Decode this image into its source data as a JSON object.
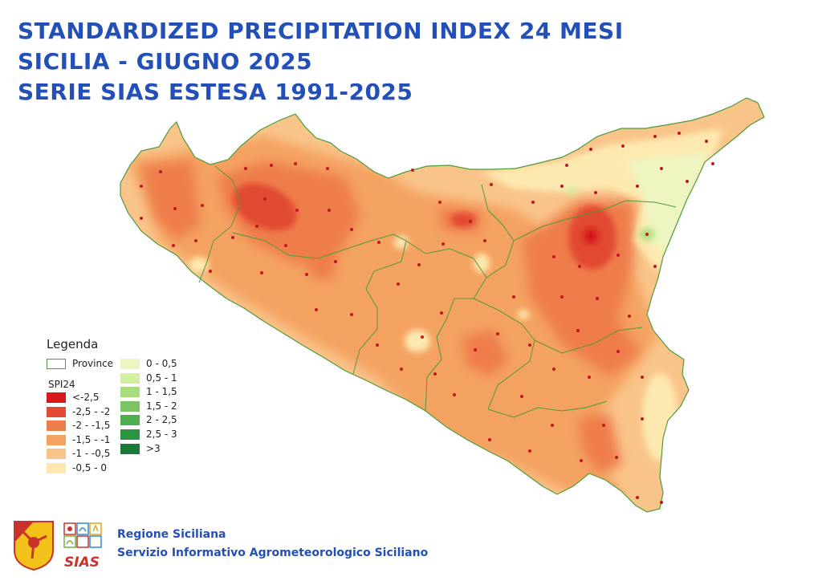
{
  "title": {
    "line1": "STANDARDIZED PRECIPITATION INDEX 24 MESI",
    "line2": "SICILIA - GIUGNO 2025",
    "line3": "SERIE SIAS ESTESA 1991-2025"
  },
  "legend": {
    "title": "Legenda",
    "province_label": "Province",
    "index_label": "SPI24",
    "classes": [
      {
        "label": "<-2,5",
        "color": "#d7191c"
      },
      {
        "label": "-2,5 - -2",
        "color": "#e24a33"
      },
      {
        "label": "-2 - -1,5",
        "color": "#ee7d4c"
      },
      {
        "label": "-1,5 - -1",
        "color": "#f4a261"
      },
      {
        "label": "-1 - -0,5",
        "color": "#f9c48a"
      },
      {
        "label": "-0,5 - 0",
        "color": "#fde9b0"
      },
      {
        "label": "0 - 0,5",
        "color": "#eef5c0"
      },
      {
        "label": "0,5 - 1",
        "color": "#d4eea2"
      },
      {
        "label": "1 - 1,5",
        "color": "#a9dc7e"
      },
      {
        "label": "1,5 - 2",
        "color": "#7cc463"
      },
      {
        "label": "2 - 2,5",
        "color": "#4fae4e"
      },
      {
        "label": "2,5 - 3",
        "color": "#2b9440"
      },
      {
        "label": ">3",
        "color": "#1a7a35"
      }
    ],
    "province_color": "#4f9a3a"
  },
  "footer": {
    "line1": "Regione Siciliana",
    "line2": "Servizio Informativo Agrometeorologico Siciliano",
    "logo_text": "SIAS"
  }
}
